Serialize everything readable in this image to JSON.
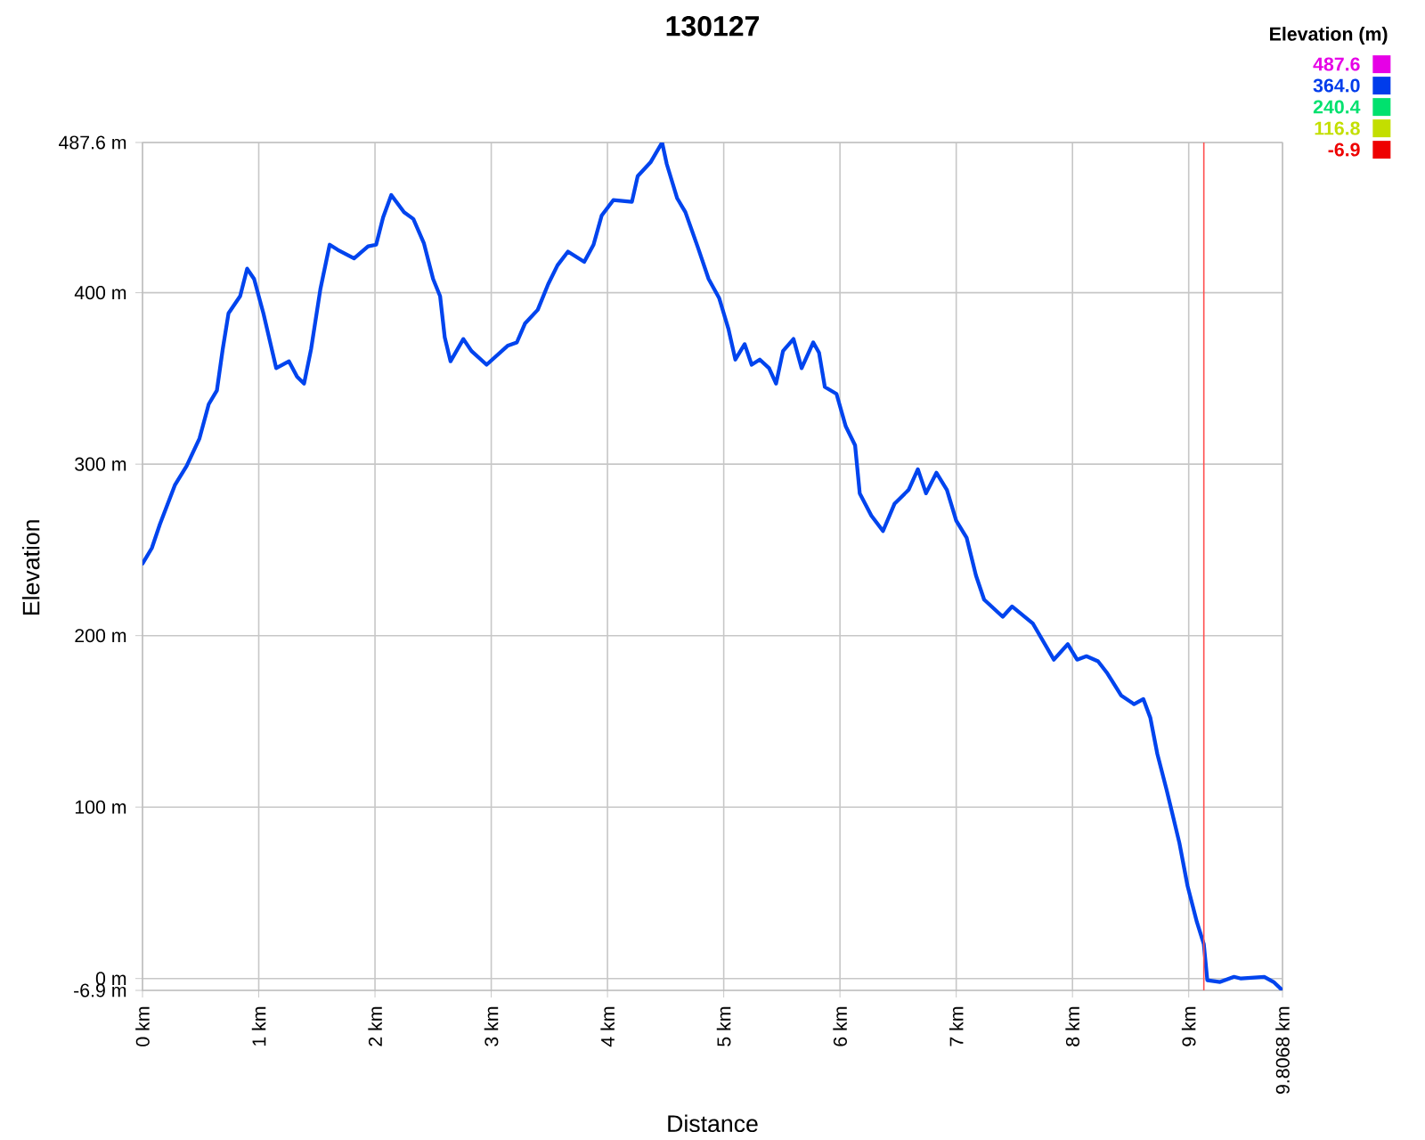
{
  "chart_data": {
    "type": "line",
    "title": "130127",
    "xlabel": "Distance",
    "ylabel": "Elevation",
    "clabel": "Elevation (m)",
    "clim": [
      -6.9,
      487.6
    ],
    "cticks": [
      487.6,
      {
        "value": 364,
        "label": "364.0"
      },
      240.4,
      116.8,
      -6.9
    ],
    "x": [
      0,
      0.08,
      0.15,
      0.28,
      0.38,
      0.49,
      0.57,
      0.64,
      0.69,
      0.74,
      0.84,
      0.9,
      0.96,
      1.04,
      1.15,
      1.26,
      1.33,
      1.39,
      1.45,
      1.53,
      1.61,
      1.68,
      1.82,
      1.94,
      2.01,
      2.07,
      2.14,
      2.25,
      2.33,
      2.42,
      2.5,
      2.56,
      2.6,
      2.65,
      2.76,
      2.83,
      2.96,
      3.14,
      3.22,
      3.29,
      3.4,
      3.49,
      3.57,
      3.66,
      3.8,
      3.88,
      3.95,
      4.05,
      4.21,
      4.26,
      4.37,
      4.47,
      4.51,
      4.6,
      4.67,
      4.78,
      4.87,
      4.96,
      5.04,
      5.1,
      5.18,
      5.24,
      5.31,
      5.39,
      5.45,
      5.51,
      5.6,
      5.67,
      5.77,
      5.82,
      5.87,
      5.97,
      6.05,
      6.13,
      6.17,
      6.27,
      6.37,
      6.47,
      6.59,
      6.67,
      6.74,
      6.83,
      6.92,
      7.0,
      7.09,
      7.17,
      7.24,
      7.4,
      7.48,
      7.66,
      7.84,
      7.96,
      8.04,
      8.12,
      8.22,
      8.3,
      8.42,
      8.53,
      8.61,
      8.67,
      8.73,
      8.81,
      8.86,
      8.92,
      8.99,
      9.07,
      9.13,
      9.16,
      9.27,
      9.39,
      9.45,
      9.65,
      9.73,
      9.8068
    ],
    "values": [
      242,
      251,
      265,
      288,
      299,
      315,
      335,
      343,
      367,
      388,
      398,
      414,
      408,
      388,
      356,
      360,
      351,
      347,
      367,
      402,
      428,
      425,
      420,
      427,
      428,
      444,
      457,
      447,
      443,
      429,
      408,
      398,
      374,
      360,
      373,
      366,
      358,
      369,
      371,
      382,
      390,
      405,
      416,
      424,
      418,
      428,
      445,
      454,
      453,
      468,
      476,
      487.6,
      475,
      455,
      447,
      426,
      408,
      397,
      379,
      361,
      370,
      358,
      361,
      356,
      347,
      366,
      373,
      356,
      371,
      365,
      345,
      341,
      322,
      311,
      283,
      270,
      261,
      277,
      285,
      297,
      283,
      295,
      285,
      267,
      257,
      235,
      221,
      211,
      217,
      207,
      186,
      195,
      186,
      188,
      185,
      178,
      165,
      160,
      163,
      152,
      131,
      110,
      96,
      79,
      54,
      33,
      20,
      -1,
      -2,
      1,
      0,
      1,
      -2,
      -6.9
    ],
    "color": "#0044ee",
    "xlim": [
      0,
      9.8068
    ],
    "ylim": [
      -6.9,
      487.6
    ],
    "xticks": [
      {
        "value": 0,
        "label": "0 km"
      },
      {
        "value": 1,
        "label": "1 km"
      },
      {
        "value": 2,
        "label": "2 km"
      },
      {
        "value": 3,
        "label": "3 km"
      },
      {
        "value": 4,
        "label": "4 km"
      },
      {
        "value": 5,
        "label": "5 km"
      },
      {
        "value": 6,
        "label": "6 km"
      },
      {
        "value": 7,
        "label": "7 km"
      },
      {
        "value": 8,
        "label": "8 km"
      },
      {
        "value": 9,
        "label": "9 km"
      },
      {
        "value": 9.8068,
        "label": "9.8068 km"
      }
    ],
    "yticks": [
      {
        "value": -6.9,
        "label": "-6.9 m"
      },
      {
        "value": 0,
        "label": "0 m"
      },
      {
        "value": 100,
        "label": "100 m"
      },
      {
        "value": 200,
        "label": "200 m"
      },
      {
        "value": 300,
        "label": "300 m"
      },
      {
        "value": 400,
        "label": "400 m"
      },
      {
        "value": 487.6,
        "label": "487.6 m"
      }
    ],
    "grid": true,
    "ref_lines": [
      {
        "axis": "x",
        "value": 9.13,
        "color": "#ff5050"
      }
    ],
    "line_style": "solid"
  }
}
